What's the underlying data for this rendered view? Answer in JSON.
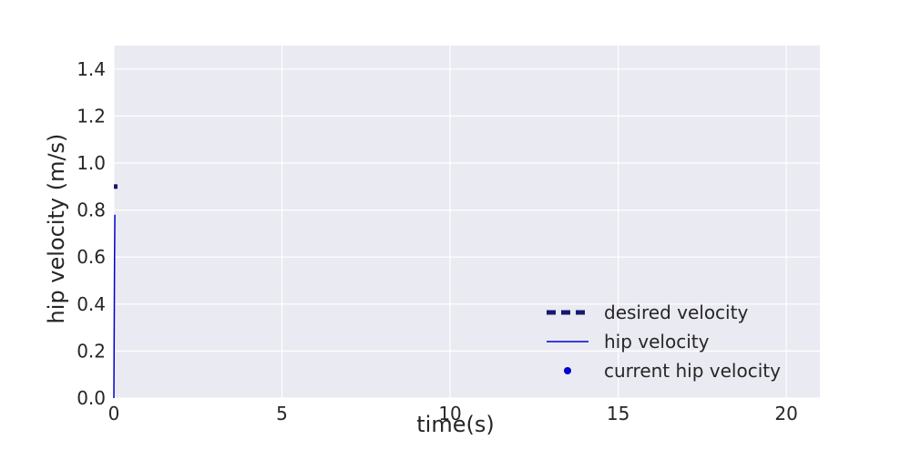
{
  "chart_data": {
    "type": "line",
    "title": "",
    "xlabel": "time(s)",
    "ylabel": "hip velocity (m/s)",
    "xlim": [
      0,
      21
    ],
    "ylim": [
      0,
      1.5
    ],
    "xticks": [
      0,
      5,
      10,
      15,
      20
    ],
    "xtick_labels": [
      "0",
      "5",
      "10",
      "15",
      "20"
    ],
    "yticks": [
      0.0,
      0.2,
      0.4,
      0.6,
      0.8,
      1.0,
      1.2,
      1.4
    ],
    "ytick_labels": [
      "0.0",
      "0.2",
      "0.4",
      "0.6",
      "0.8",
      "1.0",
      "1.2",
      "1.4"
    ],
    "grid": true,
    "legend_position": "bottom-right",
    "background_color": "#eaeaf2",
    "grid_color": "#ffffff",
    "series": [
      {
        "name": "desired velocity",
        "style": "dashed",
        "color": "#191970",
        "x": [
          0,
          0.12
        ],
        "y": [
          0.9,
          0.9
        ]
      },
      {
        "name": "hip velocity",
        "style": "solid",
        "color": "#0000cd",
        "x": [
          0,
          0.01,
          0.02,
          0.03
        ],
        "y": [
          0.0,
          0.3,
          0.6,
          0.78
        ]
      },
      {
        "name": "current hip velocity",
        "style": "marker",
        "color": "#0000cd",
        "x": [],
        "y": []
      }
    ]
  }
}
